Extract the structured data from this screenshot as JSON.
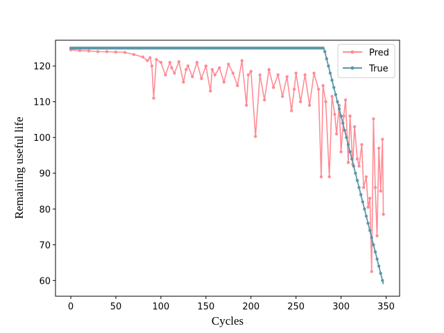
{
  "chart_data": {
    "type": "line",
    "title": "",
    "xlabel": "Cycles",
    "ylabel": "Remaining useful life",
    "xlim": [
      -17,
      365
    ],
    "ylim": [
      55.6,
      127.2
    ],
    "xticks": [
      0,
      50,
      100,
      150,
      200,
      250,
      300,
      350
    ],
    "yticks": [
      60,
      70,
      80,
      90,
      100,
      110,
      120
    ],
    "legend": "top-right",
    "grid": false,
    "series": [
      {
        "name": "Pred",
        "color": "#ff8b94",
        "x": [
          0,
          10,
          20,
          30,
          40,
          50,
          60,
          70,
          80,
          85,
          88,
          90,
          92,
          95,
          100,
          105,
          110,
          112,
          115,
          120,
          125,
          128,
          130,
          135,
          140,
          145,
          150,
          155,
          157,
          160,
          165,
          170,
          175,
          180,
          185,
          190,
          195,
          197,
          200,
          205,
          210,
          215,
          220,
          225,
          230,
          235,
          240,
          245,
          248,
          250,
          255,
          260,
          265,
          270,
          275,
          278,
          280,
          283,
          287,
          290,
          293,
          295,
          298,
          300,
          303,
          305,
          308,
          310,
          313,
          315,
          318,
          320,
          323,
          325,
          328,
          330,
          332,
          334,
          336,
          338,
          340,
          342,
          344,
          346,
          347
        ],
        "values": [
          124.5,
          124.3,
          124.2,
          124.0,
          124.0,
          123.9,
          123.8,
          123.2,
          122.5,
          121.5,
          122.3,
          120.0,
          111.0,
          121.8,
          121.0,
          117.5,
          121.0,
          119.5,
          118.0,
          121.2,
          115.5,
          119.0,
          120.0,
          117.0,
          121.0,
          116.5,
          120.0,
          113.0,
          119.0,
          117.5,
          119.5,
          115.5,
          120.5,
          118.0,
          114.5,
          121.5,
          109.0,
          117.5,
          118.5,
          100.3,
          117.5,
          110.5,
          119.0,
          114.0,
          117.5,
          111.5,
          117.0,
          107.5,
          113.5,
          118.0,
          110.0,
          117.5,
          109.0,
          118.0,
          113.5,
          89.0,
          114.5,
          110.0,
          89.0,
          111.5,
          106.5,
          101.0,
          109.0,
          96.0,
          106.0,
          110.5,
          93.0,
          106.0,
          92.5,
          103.0,
          94.0,
          92.0,
          98.0,
          86.0,
          89.0,
          80.5,
          83.0,
          62.5,
          105.2,
          86.0,
          72.5,
          97.0,
          85.0,
          99.5,
          78.5
        ]
      },
      {
        "name": "True",
        "color": "#5b97a8",
        "x": [
          0,
          281,
          347
        ],
        "values": [
          125,
          125,
          59
        ]
      }
    ]
  }
}
